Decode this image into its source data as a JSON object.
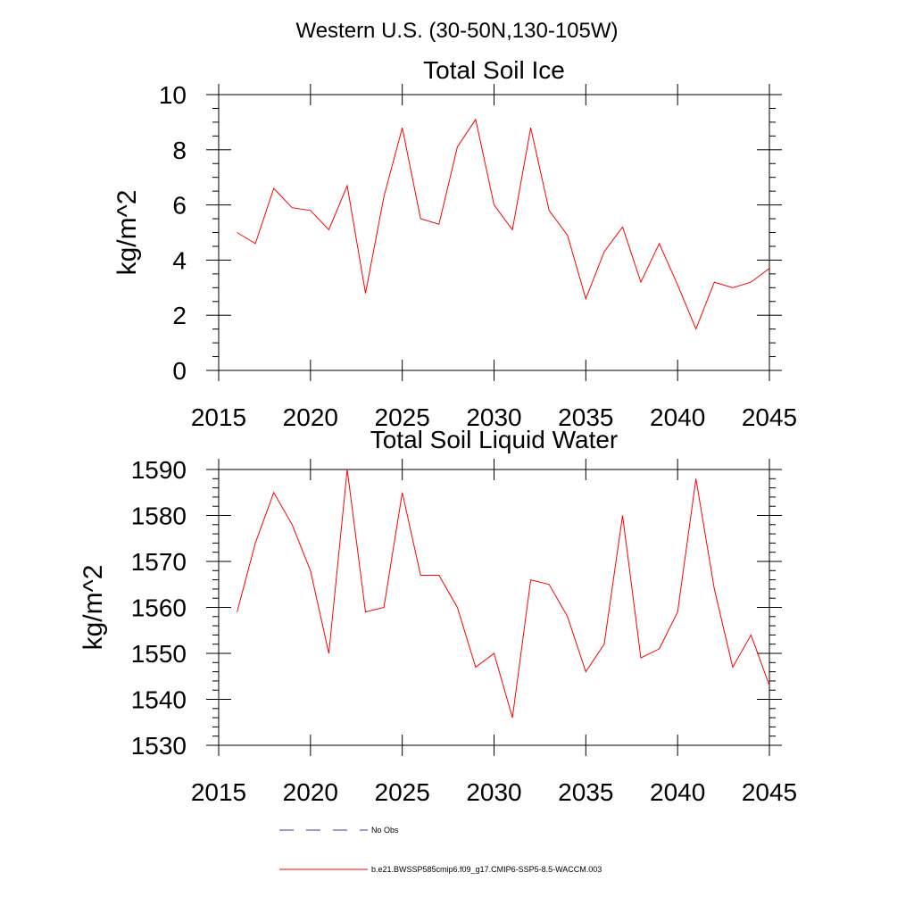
{
  "figure": {
    "suptitle": "Western U.S. (30-50N,130-105W)"
  },
  "legend": {
    "position": "bottom",
    "entries": [
      {
        "label": "No Obs",
        "style": "dashed",
        "color": "#3a3a8c"
      },
      {
        "label": "b.e21.BWSSP585cmip6.f09_g17.CMIP6-SSP5-8.5-WACCM.003",
        "style": "solid",
        "color": "#ff0000"
      }
    ]
  },
  "chart_data": [
    {
      "type": "line",
      "title": "Total Soil Ice",
      "xlabel": "",
      "ylabel": "kg/m^2",
      "xlim": [
        2015,
        2045
      ],
      "ylim": [
        0,
        10
      ],
      "xticks": [
        2015,
        2020,
        2025,
        2030,
        2035,
        2040,
        2045
      ],
      "yticks": [
        0,
        2,
        4,
        6,
        8,
        10
      ],
      "yminor": 0.5,
      "series": [
        {
          "name": "b.e21.BWSSP585cmip6.f09_g17.CMIP6-SSP5-8.5-WACCM.003",
          "color": "#ff0000",
          "x": [
            2016,
            2017,
            2018,
            2019,
            2020,
            2021,
            2022,
            2023,
            2024,
            2025,
            2026,
            2027,
            2028,
            2029,
            2030,
            2031,
            2032,
            2033,
            2034,
            2035,
            2036,
            2037,
            2038,
            2039,
            2040,
            2041,
            2042,
            2043,
            2044,
            2045
          ],
          "values": [
            5.0,
            4.6,
            6.6,
            5.9,
            5.8,
            5.1,
            6.7,
            2.8,
            6.3,
            8.8,
            5.5,
            5.3,
            8.1,
            9.1,
            6.0,
            5.1,
            8.8,
            5.8,
            4.9,
            2.6,
            4.3,
            5.2,
            3.2,
            4.6,
            3.1,
            1.5,
            3.2,
            3.0,
            3.2,
            3.7
          ]
        }
      ]
    },
    {
      "type": "line",
      "title": "Total Soil Liquid Water",
      "xlabel": "",
      "ylabel": "kg/m^2",
      "xlim": [
        2015,
        2045
      ],
      "ylim": [
        1530,
        1590
      ],
      "xticks": [
        2015,
        2020,
        2025,
        2030,
        2035,
        2040,
        2045
      ],
      "yticks": [
        1530,
        1540,
        1550,
        1560,
        1570,
        1580,
        1590
      ],
      "yminor": 2,
      "series": [
        {
          "name": "b.e21.BWSSP585cmip6.f09_g17.CMIP6-SSP5-8.5-WACCM.003",
          "color": "#ff0000",
          "x": [
            2016,
            2017,
            2018,
            2019,
            2020,
            2021,
            2022,
            2023,
            2024,
            2025,
            2026,
            2027,
            2028,
            2029,
            2030,
            2031,
            2032,
            2033,
            2034,
            2035,
            2036,
            2037,
            2038,
            2039,
            2040,
            2041,
            2042,
            2043,
            2044,
            2045
          ],
          "values": [
            1559,
            1574,
            1585,
            1578,
            1568,
            1550,
            1590,
            1559,
            1560,
            1585,
            1567,
            1567,
            1560,
            1547,
            1550,
            1536,
            1566,
            1565,
            1558,
            1546,
            1552,
            1580,
            1549,
            1551,
            1559,
            1588,
            1564,
            1547,
            1554,
            1543
          ]
        }
      ]
    }
  ]
}
